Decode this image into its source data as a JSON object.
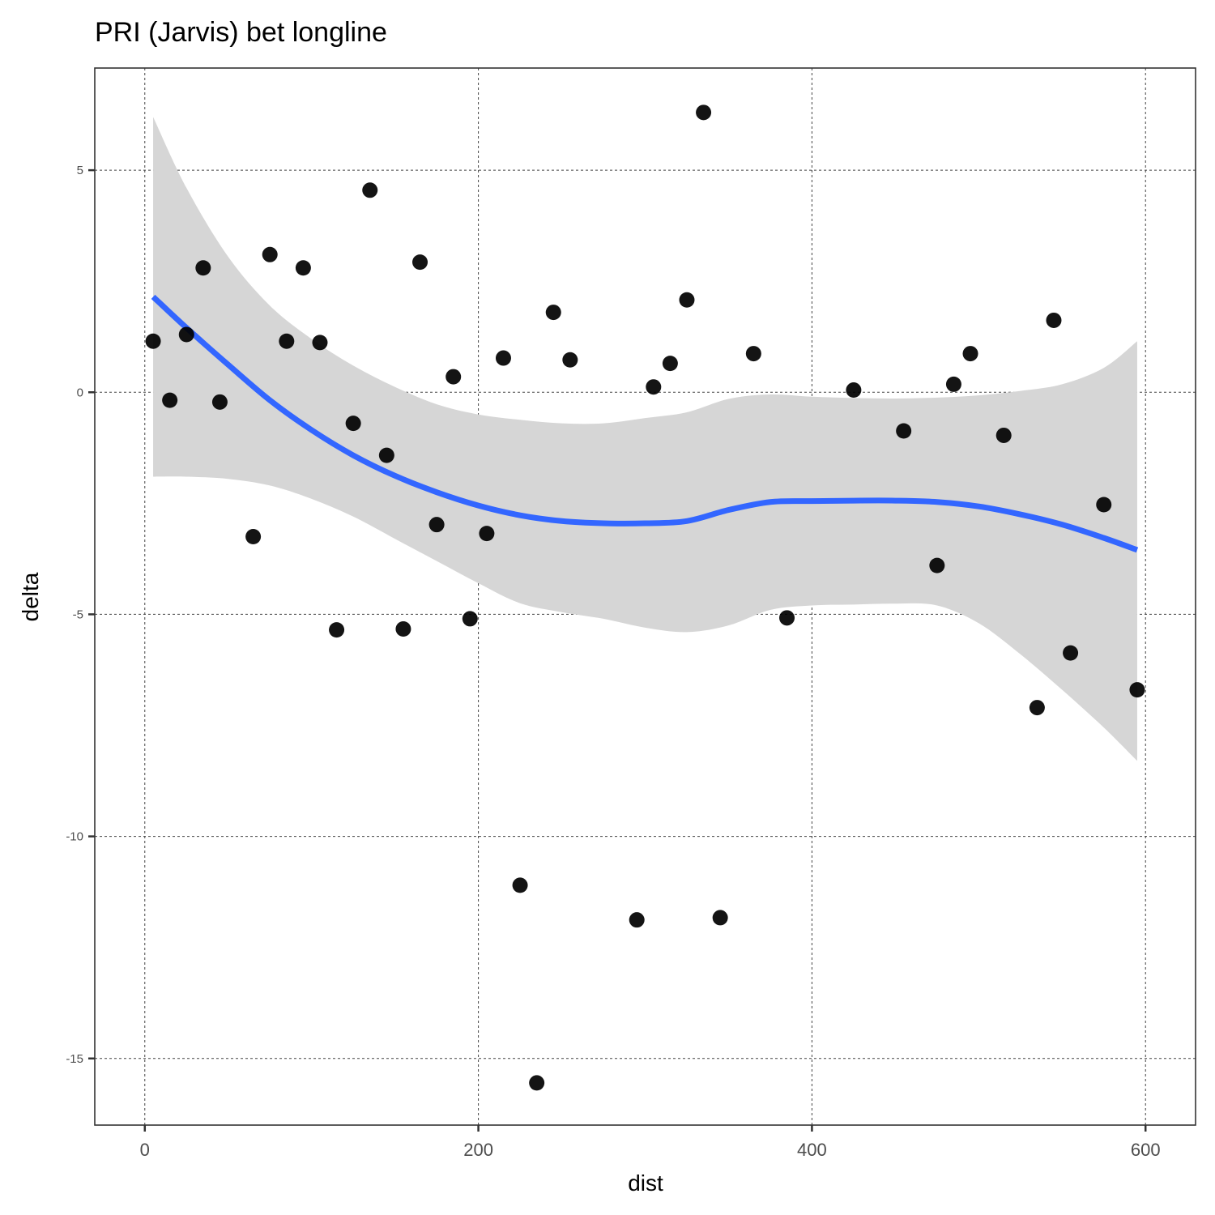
{
  "chart_data": {
    "type": "scatter",
    "title": "PRI (Jarvis) bet longline",
    "xlabel": "dist",
    "ylabel": "delta",
    "xlim": [
      -30,
      630
    ],
    "ylim": [
      -16.5,
      7.3
    ],
    "x_ticks": [
      0,
      200,
      400,
      600
    ],
    "y_ticks": [
      5,
      0,
      -5,
      -10,
      -15
    ],
    "x_tick_labels": [
      "0",
      "200",
      "400",
      "600"
    ],
    "y_tick_labels": [
      "5",
      "0",
      "-5",
      "-10",
      "-15"
    ],
    "grid": true,
    "grid_style": "dashed",
    "point_color": "#000000",
    "smooth_color": "#3366FF",
    "ribbon_color": "#d6d6d6",
    "points": [
      {
        "x": 5,
        "y": 1.15
      },
      {
        "x": 15,
        "y": -0.18
      },
      {
        "x": 25,
        "y": 1.3
      },
      {
        "x": 35,
        "y": 2.8
      },
      {
        "x": 45,
        "y": -0.22
      },
      {
        "x": 65,
        "y": -3.25
      },
      {
        "x": 75,
        "y": 3.1
      },
      {
        "x": 85,
        "y": 1.15
      },
      {
        "x": 95,
        "y": 2.8
      },
      {
        "x": 105,
        "y": 1.12
      },
      {
        "x": 115,
        "y": -5.35
      },
      {
        "x": 125,
        "y": -0.7
      },
      {
        "x": 135,
        "y": 4.55
      },
      {
        "x": 145,
        "y": -1.42
      },
      {
        "x": 155,
        "y": -5.33
      },
      {
        "x": 165,
        "y": 2.93
      },
      {
        "x": 175,
        "y": -2.98
      },
      {
        "x": 185,
        "y": 0.35
      },
      {
        "x": 195,
        "y": -5.1
      },
      {
        "x": 205,
        "y": -3.18
      },
      {
        "x": 215,
        "y": 0.77
      },
      {
        "x": 225,
        "y": -11.1
      },
      {
        "x": 235,
        "y": -15.55
      },
      {
        "x": 245,
        "y": 1.8
      },
      {
        "x": 255,
        "y": 0.73
      },
      {
        "x": 295,
        "y": -11.88
      },
      {
        "x": 305,
        "y": 0.12
      },
      {
        "x": 315,
        "y": 0.65
      },
      {
        "x": 325,
        "y": 2.08
      },
      {
        "x": 335,
        "y": 6.3
      },
      {
        "x": 345,
        "y": -11.83
      },
      {
        "x": 365,
        "y": 0.87
      },
      {
        "x": 385,
        "y": -5.08
      },
      {
        "x": 425,
        "y": 0.05
      },
      {
        "x": 455,
        "y": -0.87
      },
      {
        "x": 475,
        "y": -3.9
      },
      {
        "x": 485,
        "y": 0.18
      },
      {
        "x": 495,
        "y": 0.87
      },
      {
        "x": 515,
        "y": -0.97
      },
      {
        "x": 535,
        "y": -7.1
      },
      {
        "x": 545,
        "y": 1.62
      },
      {
        "x": 555,
        "y": -5.87
      },
      {
        "x": 575,
        "y": -2.53
      },
      {
        "x": 595,
        "y": -6.7
      }
    ],
    "smooth": {
      "x": [
        5,
        25,
        50,
        75,
        100,
        125,
        150,
        175,
        200,
        225,
        250,
        275,
        300,
        325,
        350,
        375,
        400,
        425,
        450,
        475,
        500,
        525,
        550,
        575,
        595
      ],
      "y": [
        2.15,
        1.45,
        0.62,
        -0.18,
        -0.85,
        -1.42,
        -1.88,
        -2.25,
        -2.55,
        -2.77,
        -2.9,
        -2.95,
        -2.95,
        -2.9,
        -2.65,
        -2.47,
        -2.45,
        -2.44,
        -2.44,
        -2.47,
        -2.57,
        -2.75,
        -2.98,
        -3.28,
        -3.55
      ],
      "upper": [
        6.2,
        4.6,
        3.05,
        1.95,
        1.2,
        0.6,
        0.12,
        -0.27,
        -0.5,
        -0.62,
        -0.7,
        -0.7,
        -0.58,
        -0.45,
        -0.15,
        -0.05,
        -0.1,
        -0.13,
        -0.14,
        -0.12,
        -0.07,
        0.03,
        0.18,
        0.55,
        1.15
      ],
      "lower": [
        -1.9,
        -1.9,
        -1.95,
        -2.1,
        -2.4,
        -2.8,
        -3.3,
        -3.8,
        -4.3,
        -4.75,
        -4.95,
        -5.1,
        -5.3,
        -5.4,
        -5.25,
        -4.9,
        -4.8,
        -4.78,
        -4.76,
        -4.8,
        -5.2,
        -5.9,
        -6.7,
        -7.55,
        -8.3
      ]
    }
  }
}
